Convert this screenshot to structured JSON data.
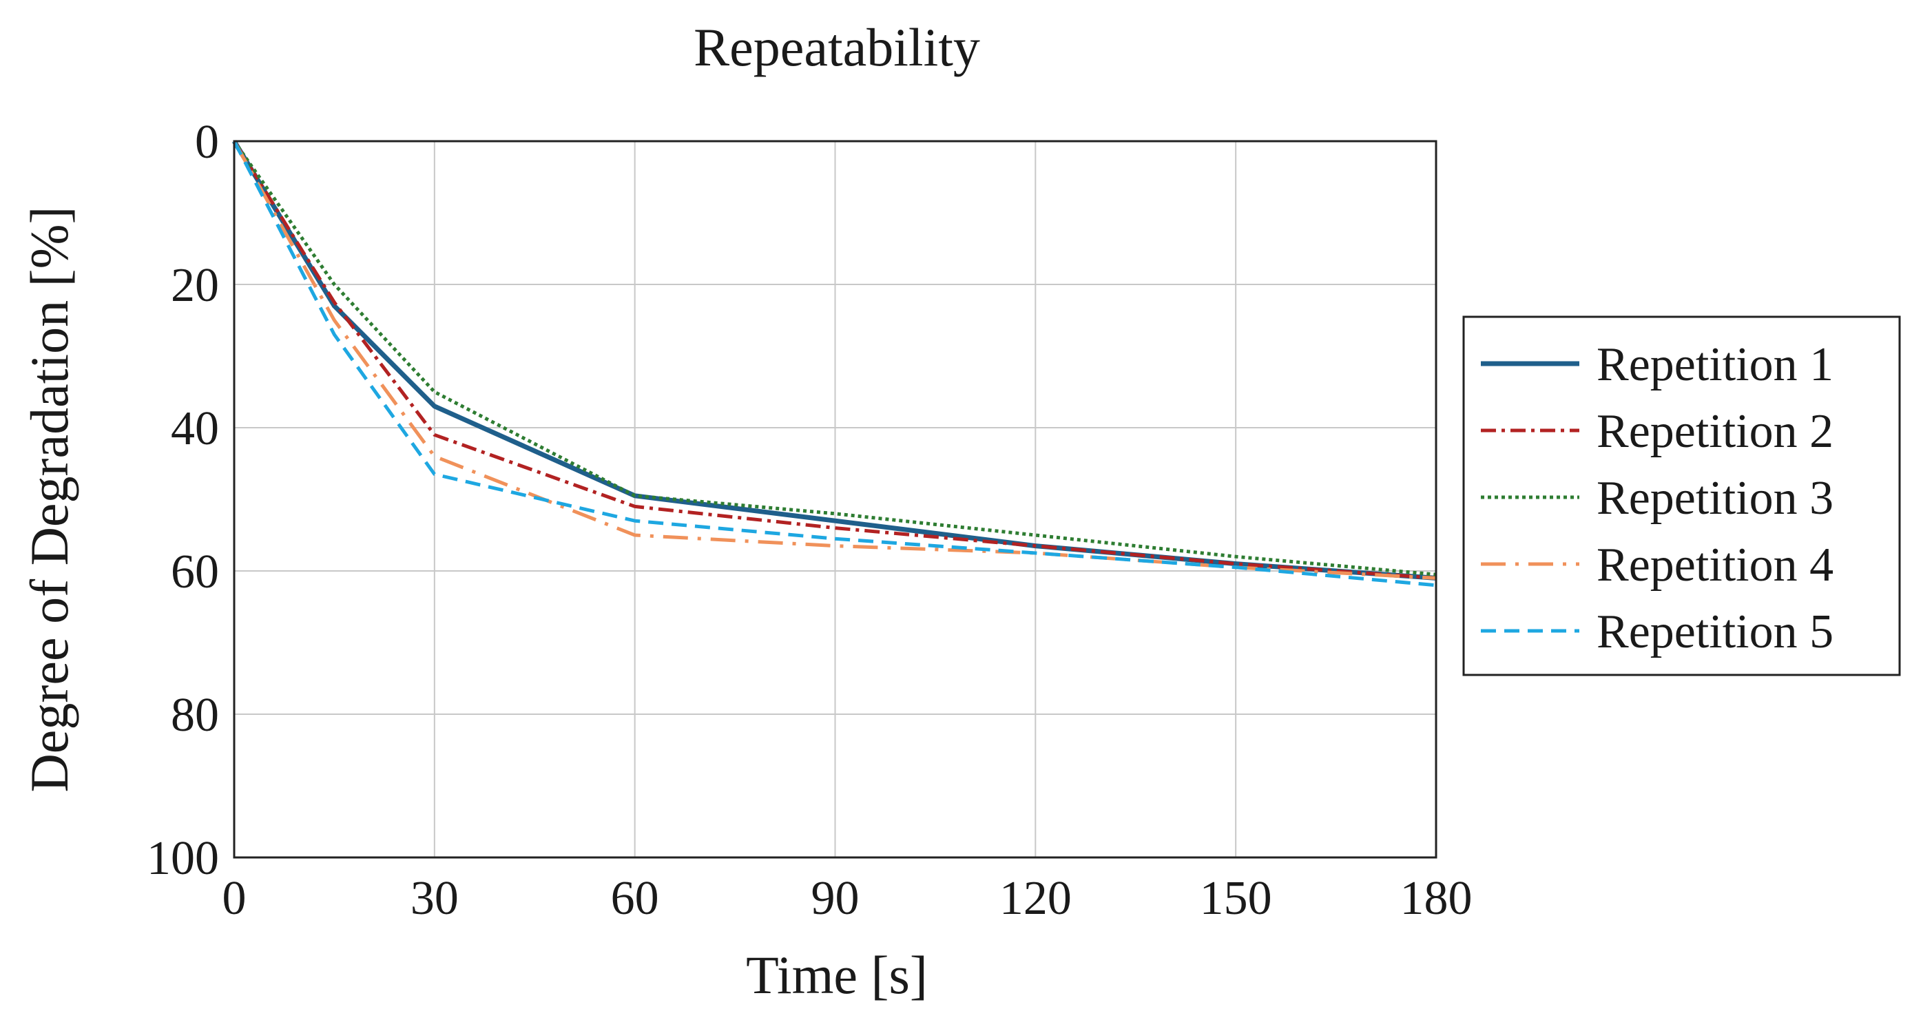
{
  "chart_data": {
    "type": "line",
    "title": "Repeatability",
    "xlabel": "Time [s]",
    "ylabel": "Degree of Degradation [%]",
    "xlim": [
      0,
      180
    ],
    "ylim": [
      100,
      0
    ],
    "y_inverted": true,
    "grid": true,
    "xticks": [
      0,
      30,
      60,
      90,
      120,
      150,
      180
    ],
    "yticks": [
      0,
      20,
      40,
      60,
      80,
      100
    ],
    "xtick_labels": [
      "0",
      "30",
      "60",
      "90",
      "120",
      "150",
      "180"
    ],
    "ytick_labels": [
      "0",
      "20",
      "40",
      "60",
      "80",
      "100"
    ],
    "legend_position": "right-outside",
    "series": [
      {
        "name": "Repetition 1",
        "color": "#1f5f8b",
        "style": "solid",
        "x": [
          0,
          15,
          30,
          60,
          90,
          120,
          150,
          180
        ],
        "y": [
          0,
          23,
          37,
          49.5,
          53,
          56.5,
          59,
          61
        ]
      },
      {
        "name": "Repetition 2",
        "color": "#b22222",
        "style": "dashdot",
        "x": [
          0,
          15,
          30,
          60,
          90,
          120,
          150,
          180
        ],
        "y": [
          0,
          22.5,
          41,
          51,
          54,
          56.5,
          59,
          61
        ]
      },
      {
        "name": "Repetition 3",
        "color": "#2e7d32",
        "style": "dotted",
        "x": [
          0,
          15,
          30,
          60,
          90,
          120,
          150,
          180
        ],
        "y": [
          0,
          20,
          35,
          49.5,
          52,
          55,
          58,
          60.5
        ]
      },
      {
        "name": "Repetition 4",
        "color": "#f0915a",
        "style": "dashdot-long",
        "x": [
          0,
          15,
          30,
          60,
          90,
          120,
          150,
          180
        ],
        "y": [
          0,
          25,
          44,
          55,
          56.5,
          57.5,
          59.5,
          61
        ]
      },
      {
        "name": "Repetition 5",
        "color": "#1ea7e1",
        "style": "dashed",
        "x": [
          0,
          15,
          30,
          60,
          90,
          120,
          150,
          180
        ],
        "y": [
          0,
          27,
          46.5,
          53,
          55.5,
          57.5,
          59.5,
          62
        ]
      }
    ]
  }
}
